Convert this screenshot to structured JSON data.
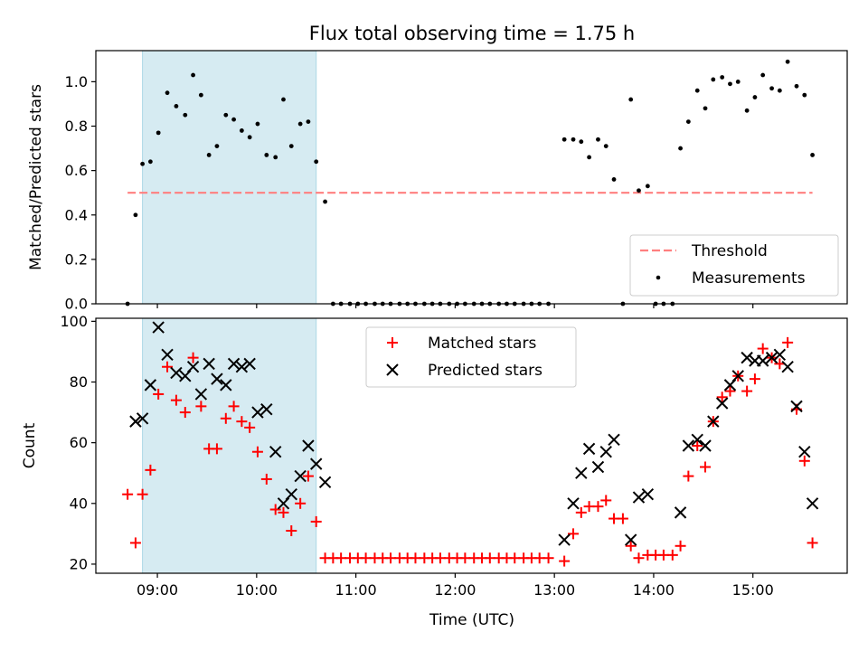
{
  "chart_data": [
    {
      "type": "scatter",
      "title": "Flux total observing time = 1.75 h",
      "ylabel": "Matched/Predicted stars",
      "xlabel": "",
      "xlim": [
        8.38,
        15.95
      ],
      "ylim": [
        0,
        1.14
      ],
      "yticks": [
        0.0,
        0.2,
        0.4,
        0.6,
        0.8,
        1.0
      ],
      "ytick_labels": [
        "0.0",
        "0.2",
        "0.4",
        "0.6",
        "0.8",
        "1.0"
      ],
      "shaded_span": [
        8.85,
        10.6
      ],
      "threshold": {
        "name": "Threshold",
        "y": 0.5,
        "x": [
          8.7,
          15.6
        ]
      },
      "legend": [
        "Threshold",
        "Measurements"
      ],
      "legend_position": "lower right",
      "series": [
        {
          "name": "Measurements",
          "points": [
            [
              8.7,
              0
            ],
            [
              8.78,
              0.4
            ],
            [
              8.85,
              0.63
            ],
            [
              8.93,
              0.64
            ],
            [
              9.01,
              0.77
            ],
            [
              9.1,
              0.95
            ],
            [
              9.19,
              0.89
            ],
            [
              9.28,
              0.85
            ],
            [
              9.36,
              1.03
            ],
            [
              9.44,
              0.94
            ],
            [
              9.52,
              0.67
            ],
            [
              9.6,
              0.71
            ],
            [
              9.69,
              0.85
            ],
            [
              9.77,
              0.83
            ],
            [
              9.85,
              0.78
            ],
            [
              9.93,
              0.75
            ],
            [
              10.01,
              0.81
            ],
            [
              10.1,
              0.67
            ],
            [
              10.19,
              0.66
            ],
            [
              10.27,
              0.92
            ],
            [
              10.35,
              0.71
            ],
            [
              10.44,
              0.81
            ],
            [
              10.52,
              0.82
            ],
            [
              10.6,
              0.64
            ],
            [
              10.69,
              0.46
            ],
            [
              10.77,
              0
            ],
            [
              10.85,
              0
            ],
            [
              10.94,
              0
            ],
            [
              11.02,
              0
            ],
            [
              11.1,
              0
            ],
            [
              11.19,
              0
            ],
            [
              11.27,
              0
            ],
            [
              11.35,
              0
            ],
            [
              11.44,
              0
            ],
            [
              11.52,
              0
            ],
            [
              11.6,
              0
            ],
            [
              11.69,
              0
            ],
            [
              11.77,
              0
            ],
            [
              11.85,
              0
            ],
            [
              11.94,
              0
            ],
            [
              12.02,
              0
            ],
            [
              12.1,
              0
            ],
            [
              12.19,
              0
            ],
            [
              12.27,
              0
            ],
            [
              12.35,
              0
            ],
            [
              12.44,
              0
            ],
            [
              12.52,
              0
            ],
            [
              12.6,
              0
            ],
            [
              12.69,
              0
            ],
            [
              12.77,
              0
            ],
            [
              12.85,
              0
            ],
            [
              12.94,
              0
            ],
            [
              13.1,
              0.74
            ],
            [
              13.19,
              0.74
            ],
            [
              13.27,
              0.73
            ],
            [
              13.35,
              0.66
            ],
            [
              13.44,
              0.74
            ],
            [
              13.52,
              0.71
            ],
            [
              13.6,
              0.56
            ],
            [
              13.69,
              0
            ],
            [
              13.77,
              0.92
            ],
            [
              13.85,
              0.51
            ],
            [
              13.94,
              0.53
            ],
            [
              14.02,
              0
            ],
            [
              14.1,
              0
            ],
            [
              14.19,
              0
            ],
            [
              14.27,
              0.7
            ],
            [
              14.35,
              0.82
            ],
            [
              14.44,
              0.96
            ],
            [
              14.52,
              0.88
            ],
            [
              14.6,
              1.01
            ],
            [
              14.69,
              1.02
            ],
            [
              14.77,
              0.99
            ],
            [
              14.85,
              1.0
            ],
            [
              14.94,
              0.87
            ],
            [
              15.02,
              0.93
            ],
            [
              15.1,
              1.03
            ],
            [
              15.19,
              0.97
            ],
            [
              15.27,
              0.96
            ],
            [
              15.35,
              1.09
            ],
            [
              15.44,
              0.98
            ],
            [
              15.52,
              0.94
            ],
            [
              15.6,
              0.67
            ]
          ]
        }
      ]
    },
    {
      "type": "scatter",
      "title": "",
      "xlabel": "Time (UTC)",
      "ylabel": "Count",
      "xlim": [
        8.38,
        15.95
      ],
      "ylim": [
        17,
        101
      ],
      "xticks": [
        9,
        10,
        11,
        12,
        13,
        14,
        15
      ],
      "xtick_labels": [
        "09:00",
        "10:00",
        "11:00",
        "12:00",
        "13:00",
        "14:00",
        "15:00"
      ],
      "yticks": [
        20,
        40,
        60,
        80,
        100
      ],
      "ytick_labels": [
        "20",
        "40",
        "60",
        "80",
        "100"
      ],
      "shaded_span": [
        8.85,
        10.6
      ],
      "legend": [
        "Matched stars",
        "Predicted stars"
      ],
      "legend_position": "upper center",
      "series": [
        {
          "name": "Matched stars",
          "marker": "plus",
          "color": "#ff0000",
          "points": [
            [
              8.7,
              43
            ],
            [
              8.78,
              27
            ],
            [
              8.85,
              43
            ],
            [
              8.93,
              51
            ],
            [
              9.01,
              76
            ],
            [
              9.1,
              85
            ],
            [
              9.19,
              74
            ],
            [
              9.28,
              70
            ],
            [
              9.36,
              88
            ],
            [
              9.44,
              72
            ],
            [
              9.52,
              58
            ],
            [
              9.6,
              58
            ],
            [
              9.69,
              68
            ],
            [
              9.77,
              72
            ],
            [
              9.85,
              67
            ],
            [
              9.93,
              65
            ],
            [
              10.01,
              57
            ],
            [
              10.1,
              48
            ],
            [
              10.19,
              38
            ],
            [
              10.27,
              37
            ],
            [
              10.35,
              31
            ],
            [
              10.44,
              40
            ],
            [
              10.52,
              49
            ],
            [
              10.6,
              34
            ],
            [
              10.69,
              22
            ],
            [
              10.77,
              22
            ],
            [
              10.85,
              22
            ],
            [
              10.94,
              22
            ],
            [
              11.02,
              22
            ],
            [
              11.1,
              22
            ],
            [
              11.19,
              22
            ],
            [
              11.27,
              22
            ],
            [
              11.35,
              22
            ],
            [
              11.44,
              22
            ],
            [
              11.52,
              22
            ],
            [
              11.6,
              22
            ],
            [
              11.69,
              22
            ],
            [
              11.77,
              22
            ],
            [
              11.85,
              22
            ],
            [
              11.94,
              22
            ],
            [
              12.02,
              22
            ],
            [
              12.1,
              22
            ],
            [
              12.19,
              22
            ],
            [
              12.27,
              22
            ],
            [
              12.35,
              22
            ],
            [
              12.44,
              22
            ],
            [
              12.52,
              22
            ],
            [
              12.6,
              22
            ],
            [
              12.69,
              22
            ],
            [
              12.77,
              22
            ],
            [
              12.85,
              22
            ],
            [
              12.94,
              22
            ],
            [
              13.1,
              21
            ],
            [
              13.19,
              30
            ],
            [
              13.27,
              37
            ],
            [
              13.35,
              39
            ],
            [
              13.44,
              39
            ],
            [
              13.52,
              41
            ],
            [
              13.6,
              35
            ],
            [
              13.69,
              35
            ],
            [
              13.77,
              26
            ],
            [
              13.85,
              22
            ],
            [
              13.94,
              23
            ],
            [
              14.02,
              23
            ],
            [
              14.1,
              23
            ],
            [
              14.19,
              23
            ],
            [
              14.27,
              26
            ],
            [
              14.35,
              49
            ],
            [
              14.44,
              59
            ],
            [
              14.52,
              52
            ],
            [
              14.6,
              67
            ],
            [
              14.69,
              75
            ],
            [
              14.77,
              77
            ],
            [
              14.85,
              82
            ],
            [
              14.94,
              77
            ],
            [
              15.02,
              81
            ],
            [
              15.1,
              91
            ],
            [
              15.19,
              88
            ],
            [
              15.27,
              86
            ],
            [
              15.35,
              93
            ],
            [
              15.44,
              71
            ],
            [
              15.52,
              54
            ],
            [
              15.6,
              27
            ]
          ]
        },
        {
          "name": "Predicted stars",
          "marker": "x",
          "color": "#000000",
          "points": [
            [
              8.78,
              67
            ],
            [
              8.85,
              68
            ],
            [
              8.93,
              79
            ],
            [
              9.01,
              98
            ],
            [
              9.1,
              89
            ],
            [
              9.19,
              83
            ],
            [
              9.28,
              82
            ],
            [
              9.36,
              85
            ],
            [
              9.44,
              76
            ],
            [
              9.52,
              86
            ],
            [
              9.6,
              81
            ],
            [
              9.69,
              79
            ],
            [
              9.77,
              86
            ],
            [
              9.85,
              85
            ],
            [
              9.93,
              86
            ],
            [
              10.01,
              70
            ],
            [
              10.1,
              71
            ],
            [
              10.19,
              57
            ],
            [
              10.27,
              40
            ],
            [
              10.35,
              43
            ],
            [
              10.44,
              49
            ],
            [
              10.52,
              59
            ],
            [
              10.6,
              53
            ],
            [
              10.69,
              47
            ],
            [
              13.1,
              28
            ],
            [
              13.19,
              40
            ],
            [
              13.27,
              50
            ],
            [
              13.35,
              58
            ],
            [
              13.44,
              52
            ],
            [
              13.52,
              57
            ],
            [
              13.6,
              61
            ],
            [
              13.77,
              28
            ],
            [
              13.85,
              42
            ],
            [
              13.94,
              43
            ],
            [
              14.27,
              37
            ],
            [
              14.35,
              59
            ],
            [
              14.44,
              61
            ],
            [
              14.52,
              59
            ],
            [
              14.6,
              67
            ],
            [
              14.69,
              73
            ],
            [
              14.77,
              79
            ],
            [
              14.85,
              82
            ],
            [
              14.94,
              88
            ],
            [
              15.02,
              87
            ],
            [
              15.1,
              87
            ],
            [
              15.19,
              88
            ],
            [
              15.27,
              89
            ],
            [
              15.35,
              85
            ],
            [
              15.44,
              72
            ],
            [
              15.52,
              57
            ],
            [
              15.6,
              40
            ]
          ]
        }
      ]
    }
  ]
}
